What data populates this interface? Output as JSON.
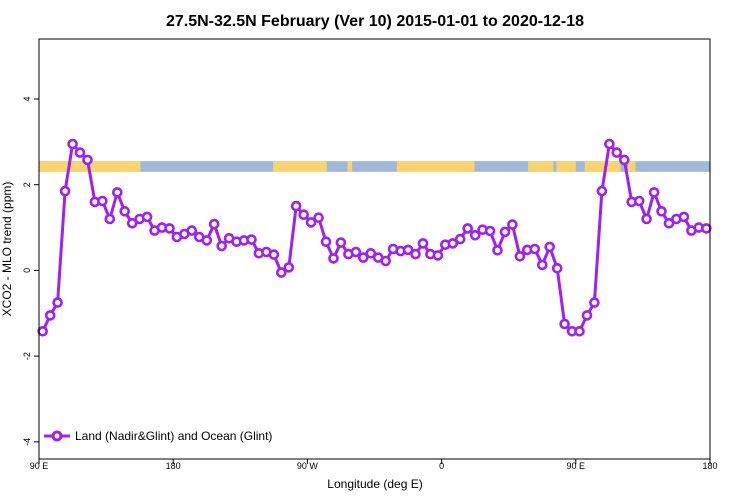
{
  "chart_data": {
    "type": "line",
    "title": "27.5N-32.5N February (Ver 10)   2015-01-01 to 2020-12-18",
    "xlabel": "Longitude (deg E)",
    "ylabel": "XCO2 - MLO trend (ppm)",
    "xlim": [
      90,
      540
    ],
    "ylim": [
      -4.4,
      5.4
    ],
    "x_ticks": [
      {
        "value": 90,
        "label": "90 E"
      },
      {
        "value": 180,
        "label": "180"
      },
      {
        "value": 270,
        "label": "90 W"
      },
      {
        "value": 360,
        "label": "0"
      },
      {
        "value": 450,
        "label": "90 E"
      },
      {
        "value": 540,
        "label": "180"
      }
    ],
    "y_ticks": [
      {
        "value": -4,
        "label": "-4"
      },
      {
        "value": -2,
        "label": "-2"
      },
      {
        "value": 0,
        "label": "0"
      },
      {
        "value": 2,
        "label": "2"
      },
      {
        "value": 4,
        "label": "4"
      }
    ],
    "grid": false,
    "legend": {
      "position": "bottom-left",
      "entries": [
        "Land (Nadir&Glint) and Ocean (Glint)"
      ]
    },
    "colors": {
      "series": "#a020f0",
      "land": "#fad56f",
      "ocean": "#9fb9d8"
    },
    "surface_band": {
      "y_range": [
        2.3,
        2.55
      ],
      "land_segments": [
        [
          90,
          158
        ],
        [
          247,
          283
        ],
        [
          297,
          300
        ],
        [
          330,
          382
        ],
        [
          418,
          435
        ],
        [
          437,
          450
        ],
        [
          456,
          480
        ],
        [
          485,
          490
        ]
      ]
    },
    "series": [
      {
        "name": "Land (Nadir&Glint) and Ocean (Glint)",
        "x": [
          92.5,
          97.5,
          102.5,
          107.5,
          112.5,
          117.5,
          122.5,
          127.5,
          132.5,
          137.5,
          142.5,
          147.5,
          152.5,
          157.5,
          162.5,
          167.5,
          172.5,
          177.5,
          182.5,
          187.5,
          192.5,
          197.5,
          202.5,
          207.5,
          212.5,
          217.5,
          222.5,
          227.5,
          232.5,
          237.5,
          242.5,
          247.5,
          252.5,
          257.5,
          262.5,
          267.5,
          272.5,
          277.5,
          282.5,
          287.5,
          292.5,
          297.5,
          302.5,
          307.5,
          312.5,
          317.5,
          322.5,
          327.5,
          332.5,
          337.5,
          342.5,
          347.5,
          352.5,
          357.5,
          362.5,
          367.5,
          372.5,
          377.5,
          382.5,
          387.5,
          392.5,
          397.5,
          402.5,
          407.5,
          412.5,
          417.5,
          422.5,
          427.5,
          432.5,
          437.5,
          442.5,
          447.5,
          452.5,
          457.5,
          462.5,
          467.5,
          472.5,
          477.5,
          482.5,
          487.5,
          492.5,
          497.5,
          502.5,
          507.5,
          512.5,
          517.5,
          522.5,
          527.5,
          532.5,
          537.5
        ],
        "y": [
          -1.42,
          -1.05,
          -0.75,
          1.85,
          2.95,
          2.75,
          2.58,
          1.6,
          1.62,
          1.2,
          1.82,
          1.38,
          1.1,
          1.2,
          1.25,
          0.93,
          1.0,
          0.98,
          0.78,
          0.85,
          0.93,
          0.78,
          0.7,
          1.08,
          0.57,
          0.75,
          0.67,
          0.7,
          0.72,
          0.4,
          0.43,
          0.37,
          -0.05,
          0.07,
          1.5,
          1.3,
          1.12,
          1.23,
          0.67,
          0.28,
          0.65,
          0.38,
          0.43,
          0.3,
          0.4,
          0.3,
          0.22,
          0.5,
          0.45,
          0.48,
          0.38,
          0.63,
          0.38,
          0.35,
          0.6,
          0.63,
          0.73,
          0.98,
          0.82,
          0.95,
          0.92,
          0.47,
          0.9,
          1.07,
          0.33,
          0.48,
          0.5,
          0.13,
          0.55,
          0.05,
          -1.25,
          -1.42,
          -1.42,
          -1.05,
          -0.75,
          1.85,
          2.95,
          2.75,
          2.58,
          1.6,
          1.62,
          1.2,
          1.82,
          1.38,
          1.1,
          1.2,
          1.25,
          0.93,
          1.0,
          0.98
        ]
      }
    ]
  }
}
